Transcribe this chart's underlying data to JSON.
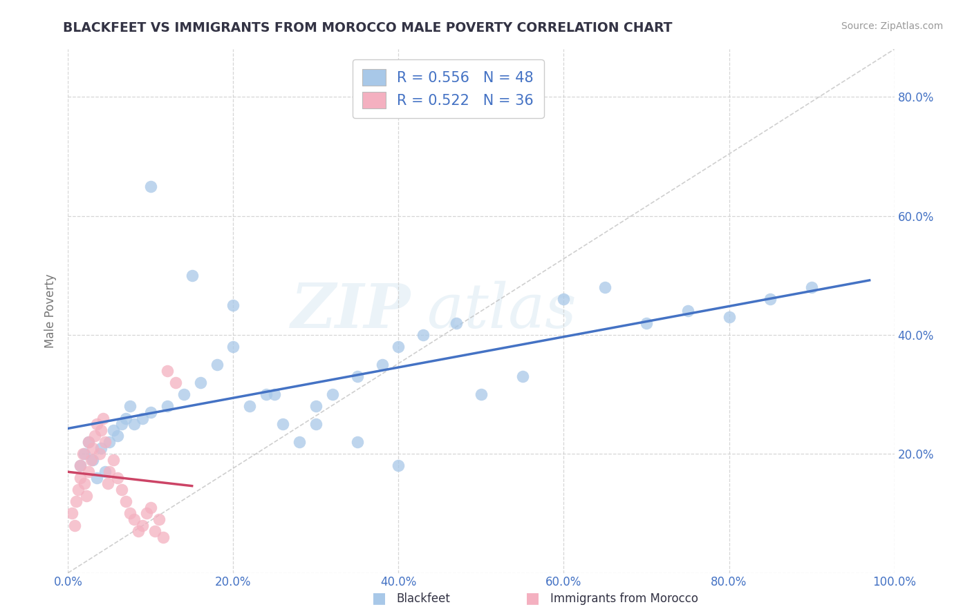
{
  "title": "BLACKFEET VS IMMIGRANTS FROM MOROCCO MALE POVERTY CORRELATION CHART",
  "source": "Source: ZipAtlas.com",
  "ylabel": "Male Poverty",
  "R1": "0.556",
  "N1": "48",
  "R2": "0.522",
  "N2": "36",
  "color_blue": "#a8c8e8",
  "color_pink": "#f4b0c0",
  "line_blue": "#4472c4",
  "line_pink": "#cc4466",
  "text_blue": "#4472c4",
  "text_dark": "#333344",
  "grid_color": "#cccccc",
  "bg_color": "#ffffff",
  "legend_label1": "Blackfeet",
  "legend_label2": "Immigrants from Morocco",
  "xlim": [
    0.0,
    1.0
  ],
  "ylim": [
    0.0,
    0.88
  ],
  "xticks": [
    0.0,
    0.2,
    0.4,
    0.6,
    0.8,
    1.0
  ],
  "yticks": [
    0.0,
    0.2,
    0.4,
    0.6,
    0.8
  ],
  "xtick_labels": [
    "0.0%",
    "20.0%",
    "40.0%",
    "60.0%",
    "80.0%",
    "100.0%"
  ],
  "ytick_labels_right": [
    "",
    "20.0%",
    "40.0%",
    "60.0%",
    "80.0%"
  ],
  "blackfeet_x": [
    0.015,
    0.02,
    0.025,
    0.03,
    0.035,
    0.04,
    0.045,
    0.05,
    0.055,
    0.06,
    0.065,
    0.07,
    0.075,
    0.08,
    0.09,
    0.1,
    0.12,
    0.14,
    0.16,
    0.18,
    0.2,
    0.22,
    0.24,
    0.26,
    0.28,
    0.3,
    0.32,
    0.35,
    0.38,
    0.4,
    0.43,
    0.47,
    0.5,
    0.55,
    0.6,
    0.65,
    0.7,
    0.75,
    0.8,
    0.85,
    0.9,
    0.1,
    0.15,
    0.3,
    0.35,
    0.4,
    0.2,
    0.25
  ],
  "blackfeet_y": [
    0.18,
    0.2,
    0.22,
    0.19,
    0.16,
    0.21,
    0.17,
    0.22,
    0.24,
    0.23,
    0.25,
    0.26,
    0.28,
    0.25,
    0.26,
    0.27,
    0.28,
    0.3,
    0.32,
    0.35,
    0.38,
    0.28,
    0.3,
    0.25,
    0.22,
    0.28,
    0.3,
    0.33,
    0.35,
    0.38,
    0.4,
    0.42,
    0.3,
    0.33,
    0.46,
    0.48,
    0.42,
    0.44,
    0.43,
    0.46,
    0.48,
    0.65,
    0.5,
    0.25,
    0.22,
    0.18,
    0.45,
    0.3
  ],
  "morocco_x": [
    0.005,
    0.008,
    0.01,
    0.012,
    0.015,
    0.015,
    0.018,
    0.02,
    0.022,
    0.025,
    0.025,
    0.028,
    0.03,
    0.032,
    0.035,
    0.038,
    0.04,
    0.042,
    0.045,
    0.048,
    0.05,
    0.055,
    0.06,
    0.065,
    0.07,
    0.075,
    0.08,
    0.085,
    0.09,
    0.095,
    0.1,
    0.105,
    0.11,
    0.115,
    0.12,
    0.13
  ],
  "morocco_y": [
    0.1,
    0.08,
    0.12,
    0.14,
    0.16,
    0.18,
    0.2,
    0.15,
    0.13,
    0.17,
    0.22,
    0.19,
    0.21,
    0.23,
    0.25,
    0.2,
    0.24,
    0.26,
    0.22,
    0.15,
    0.17,
    0.19,
    0.16,
    0.14,
    0.12,
    0.1,
    0.09,
    0.07,
    0.08,
    0.1,
    0.11,
    0.07,
    0.09,
    0.06,
    0.34,
    0.32
  ]
}
